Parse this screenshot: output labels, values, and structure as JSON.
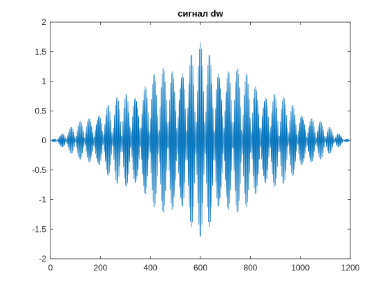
{
  "chart_data": {
    "type": "line",
    "title": "сигнал dw",
    "xlabel": "",
    "ylabel": "",
    "xlim": [
      0,
      1200
    ],
    "ylim": [
      -2,
      2
    ],
    "x_ticks": [
      0,
      200,
      400,
      600,
      800,
      1000,
      1200
    ],
    "x_tick_labels": [
      "0",
      "200",
      "400",
      "600",
      "800",
      "1000",
      "1200"
    ],
    "y_ticks": [
      2,
      1.5,
      1,
      0.5,
      0,
      -0.5,
      -1,
      -1.5,
      -2
    ],
    "y_tick_labels": [
      "2",
      "1.5",
      "1",
      "0.5",
      "0",
      "-0.5",
      "-1",
      "-1.5",
      "-2"
    ],
    "grid": false,
    "series": [
      {
        "name": "dw",
        "color": "#0072BD",
        "n_points": 1201,
        "x_start": 0,
        "x_step": 1,
        "envelope_peak": 1.65,
        "envelope_peak_x": 600,
        "envelope_shape": "triangular",
        "carrier_frequencies": [
          0.235,
          0.262
        ],
        "carrier_weights": [
          0.55,
          0.45
        ]
      }
    ]
  }
}
